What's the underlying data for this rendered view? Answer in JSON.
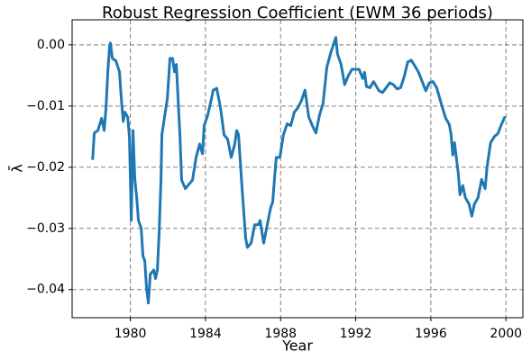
{
  "chart_data": {
    "type": "line",
    "title": "Robust Regression Coefficient (EWM 36 periods)",
    "xlabel": "Year",
    "ylabel": "λ̄",
    "xlim": [
      1976.9,
      2000.9
    ],
    "ylim": [
      -0.0446,
      0.0041
    ],
    "xticks": [
      1980,
      1984,
      1988,
      1992,
      1996,
      2000
    ],
    "yticks": [
      {
        "value": 0,
        "label": "0.00"
      },
      {
        "value": -0.01,
        "label": "−0.01"
      },
      {
        "value": -0.02,
        "label": "−0.02"
      },
      {
        "value": -0.03,
        "label": "−0.03"
      },
      {
        "value": -0.04,
        "label": "−0.04"
      }
    ],
    "grid": true,
    "series": [
      {
        "color": "#1f77b4",
        "x": [
          1977.99,
          1978.08,
          1978.27,
          1978.47,
          1978.61,
          1978.71,
          1978.8,
          1978.9,
          1978.94,
          1979.04,
          1979.23,
          1979.42,
          1979.52,
          1979.62,
          1979.71,
          1979.86,
          1979.95,
          1980.05,
          1980.14,
          1980.24,
          1980.34,
          1980.43,
          1980.58,
          1980.67,
          1980.77,
          1980.86,
          1980.96,
          1981.06,
          1981.25,
          1981.34,
          1981.44,
          1981.53,
          1981.63,
          1981.68,
          1981.82,
          1981.97,
          1982.11,
          1982.25,
          1982.35,
          1982.45,
          1982.54,
          1982.64,
          1982.73,
          1982.93,
          1983.12,
          1983.31,
          1983.5,
          1983.69,
          1983.84,
          1983.93,
          1984.12,
          1984.32,
          1984.41,
          1984.6,
          1984.8,
          1984.99,
          1985.18,
          1985.37,
          1985.56,
          1985.66,
          1985.76,
          1985.95,
          1986.14,
          1986.23,
          1986.43,
          1986.62,
          1986.81,
          1986.91,
          1987.1,
          1987.29,
          1987.48,
          1987.58,
          1987.67,
          1987.77,
          1987.96,
          1988.15,
          1988.35,
          1988.54,
          1988.73,
          1988.92,
          1989.11,
          1989.3,
          1989.5,
          1989.69,
          1989.88,
          1990.07,
          1990.26,
          1990.46,
          1990.65,
          1990.84,
          1990.94,
          1991.03,
          1991.22,
          1991.41,
          1991.61,
          1991.8,
          1991.99,
          1992.18,
          1992.37,
          1992.47,
          1992.57,
          1992.76,
          1992.95,
          1993.24,
          1993.43,
          1993.62,
          1993.81,
          1994.0,
          1994.2,
          1994.39,
          1994.58,
          1994.77,
          1994.96,
          1995.16,
          1995.35,
          1995.54,
          1995.73,
          1995.92,
          1996.11,
          1996.31,
          1996.59,
          1996.79,
          1996.98,
          1997.07,
          1997.17,
          1997.26,
          1997.46,
          1997.55,
          1997.7,
          1997.84,
          1998.03,
          1998.18,
          1998.32,
          1998.51,
          1998.7,
          1998.89,
          1998.99,
          1999.18,
          1999.38,
          1999.57,
          1999.76,
          1999.95
        ],
        "values": [
          -0.0188,
          -0.0144,
          -0.014,
          -0.012,
          -0.014,
          -0.01,
          -0.0045,
          0.0,
          0.0003,
          -0.0022,
          -0.0026,
          -0.0044,
          -0.0088,
          -0.0125,
          -0.011,
          -0.0118,
          -0.015,
          -0.0287,
          -0.014,
          -0.022,
          -0.025,
          -0.0287,
          -0.03,
          -0.0345,
          -0.0353,
          -0.0397,
          -0.0422,
          -0.0375,
          -0.0368,
          -0.0382,
          -0.0368,
          -0.0309,
          -0.0221,
          -0.0147,
          -0.0118,
          -0.0088,
          -0.0022,
          -0.0022,
          -0.0044,
          -0.0032,
          -0.0088,
          -0.0147,
          -0.0221,
          -0.0235,
          -0.0228,
          -0.0221,
          -0.0184,
          -0.0162,
          -0.0178,
          -0.0132,
          -0.0115,
          -0.0088,
          -0.0074,
          -0.0071,
          -0.0103,
          -0.0147,
          -0.0154,
          -0.0184,
          -0.0162,
          -0.014,
          -0.0147,
          -0.0235,
          -0.0316,
          -0.0331,
          -0.0324,
          -0.0294,
          -0.0294,
          -0.0287,
          -0.0324,
          -0.0294,
          -0.0265,
          -0.0257,
          -0.0221,
          -0.0184,
          -0.0184,
          -0.0147,
          -0.0129,
          -0.0132,
          -0.011,
          -0.0103,
          -0.0091,
          -0.0074,
          -0.0118,
          -0.0132,
          -0.0144,
          -0.0115,
          -0.0096,
          -0.0037,
          -0.0015,
          0.0003,
          0.0012,
          -0.0015,
          -0.0032,
          -0.0065,
          -0.005,
          -0.004,
          -0.004,
          -0.004,
          -0.0055,
          -0.0045,
          -0.0068,
          -0.007,
          -0.006,
          -0.0075,
          -0.0078,
          -0.007,
          -0.0062,
          -0.0065,
          -0.0072,
          -0.007,
          -0.0052,
          -0.0028,
          -0.0025,
          -0.0035,
          -0.0045,
          -0.006,
          -0.0075,
          -0.0062,
          -0.006,
          -0.007,
          -0.01,
          -0.012,
          -0.013,
          -0.0145,
          -0.018,
          -0.016,
          -0.021,
          -0.0245,
          -0.023,
          -0.025,
          -0.026,
          -0.028,
          -0.026,
          -0.025,
          -0.022,
          -0.0235,
          -0.02,
          -0.016,
          -0.015,
          -0.0145,
          -0.013,
          -0.0117
        ]
      }
    ]
  }
}
